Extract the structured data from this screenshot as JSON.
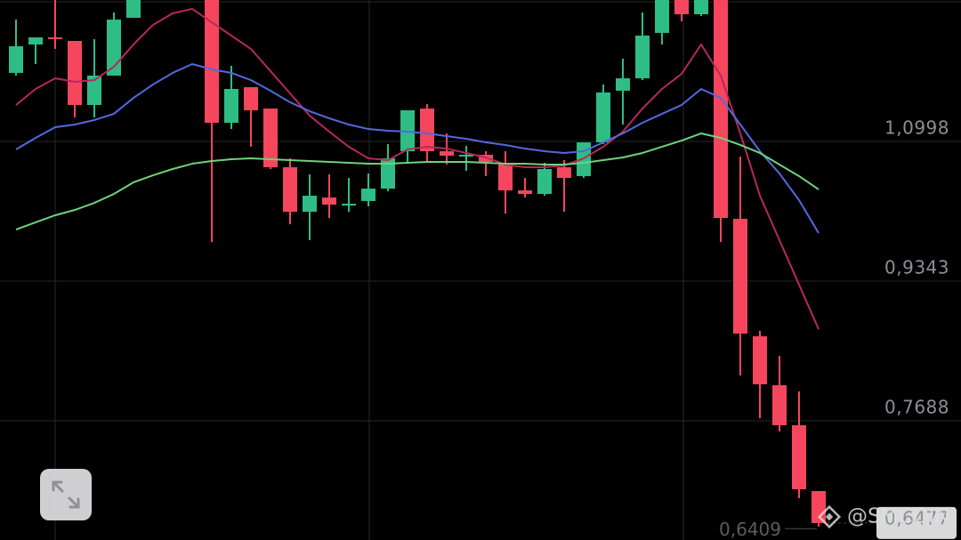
{
  "chart_data": {
    "type": "candlestick",
    "categories": [
      null,
      null,
      null,
      null,
      null,
      null,
      null,
      null,
      null,
      null,
      null,
      null,
      null,
      null,
      null,
      null,
      null,
      null,
      null,
      null,
      null,
      null,
      null,
      null,
      null,
      null,
      null,
      null,
      null,
      null,
      null,
      null,
      null,
      null,
      null,
      null,
      null,
      null,
      null,
      null,
      null,
      null
    ],
    "open": [
      1.181,
      1.2147,
      1.2231,
      1.2189,
      1.143,
      1.1778,
      1.2463,
      null,
      null,
      null,
      1.2674,
      1.1219,
      1.1641,
      1.1388,
      1.0692,
      1.0165,
      1.0334,
      1.0239,
      1.0292,
      1.0439,
      1.0882,
      1.1388,
      1.0882,
      1.0819,
      1.084,
      1.0745,
      1.0418,
      1.0376,
      1.0692,
      1.0587,
      1.0987,
      1.1599,
      1.1746,
      1.2284,
      1.2674,
      1.2505,
      1.2674,
      1.0081,
      0.8689,
      0.8109,
      0.7635,
      0.6855
    ],
    "high": [
      1.2442,
      1.2231,
      1.2674,
      1.2189,
      1.221,
      1.2526,
      1.2674,
      null,
      null,
      null,
      1.2674,
      1.1894,
      1.1641,
      1.1388,
      1.0798,
      1.0608,
      1.0608,
      1.0566,
      1.0618,
      1.0966,
      1.1367,
      1.1441,
      1.1093,
      1.0945,
      1.0882,
      1.0882,
      1.0566,
      1.0745,
      1.0777,
      1.0987,
      1.1673,
      1.1978,
      1.2526,
      1.2674,
      1.2674,
      1.2674,
      1.2674,
      1.0819,
      0.8752,
      0.8457,
      0.8036,
      0.6855
    ],
    "low": [
      1.1778,
      1.1915,
      1.2094,
      1.1282,
      1.1282,
      1.1778,
      1.2463,
      null,
      null,
      null,
      0.9807,
      1.1145,
      1.0935,
      1.0671,
      1.0017,
      0.9828,
      1.0091,
      1.0165,
      1.0228,
      1.0407,
      1.0755,
      1.0755,
      1.0724,
      1.065,
      1.0587,
      1.0144,
      1.0334,
      1.0355,
      1.0165,
      1.0566,
      1.0966,
      1.1198,
      1.1725,
      1.2147,
      1.2421,
      1.2484,
      0.9807,
      0.8225,
      0.7718,
      0.7561,
      0.677,
      0.6433
    ],
    "close": [
      1.2126,
      1.2231,
      1.221,
      1.143,
      1.1778,
      1.2442,
      1.2674,
      null,
      null,
      null,
      1.1219,
      1.162,
      1.1367,
      1.0692,
      1.0165,
      1.0355,
      1.0249,
      1.026,
      1.0439,
      1.0798,
      1.1367,
      1.0882,
      1.0829,
      1.084,
      1.0755,
      1.0418,
      1.0376,
      1.0671,
      1.0566,
      1.0987,
      1.1578,
      1.1746,
      1.2252,
      1.2674,
      1.2505,
      1.2674,
      1.0091,
      0.8721,
      0.812,
      0.7635,
      0.6876,
      0.6475
    ],
    "up_color": "#2ebd85",
    "down_color": "#f6465d",
    "series": [
      {
        "color": "#b8275f",
        "values": [
          1.143,
          1.162,
          1.1746,
          1.1704,
          1.1725,
          1.1883,
          1.2147,
          1.2379,
          1.2516,
          1.2569,
          1.241,
          1.2252,
          1.2094,
          1.1831,
          1.1567,
          1.1304,
          1.1114,
          1.0935,
          1.0798,
          1.0777,
          1.0903,
          1.0935,
          1.0913,
          1.0861,
          1.0808,
          1.0724,
          1.0692,
          1.0692,
          1.0713,
          1.0798,
          1.0935,
          1.1114,
          1.1388,
          1.162,
          1.1799,
          1.2147,
          1.1778,
          1.1093,
          1.0355,
          0.9828,
          0.9301,
          0.8773
        ]
      },
      {
        "color": "#5468e0",
        "values": [
          1.0903,
          1.104,
          1.1167,
          1.1198,
          1.1251,
          1.1325,
          1.1514,
          1.1673,
          1.181,
          1.1915,
          1.1852,
          1.181,
          1.1725,
          1.1599,
          1.1462,
          1.1356,
          1.1272,
          1.1198,
          1.1145,
          1.1124,
          1.1114,
          1.1093,
          1.1061,
          1.1029,
          1.0987,
          1.0956,
          1.0913,
          1.0882,
          1.0861,
          1.0882,
          1.0987,
          1.1093,
          1.1219,
          1.1325,
          1.143,
          1.162,
          1.1514,
          1.1198,
          1.0882,
          1.0618,
          1.0302,
          0.9912
        ]
      },
      {
        "color": "#6fd27a",
        "values": [
          0.9954,
          1.0039,
          1.0123,
          1.0186,
          1.027,
          1.0376,
          1.0513,
          1.0597,
          1.0671,
          1.0734,
          1.0766,
          1.0787,
          1.0798,
          1.0787,
          1.0777,
          1.0766,
          1.0755,
          1.0745,
          1.0734,
          1.0734,
          1.0745,
          1.0755,
          1.0755,
          1.0755,
          1.0745,
          1.0734,
          1.0734,
          1.0724,
          1.0724,
          1.0745,
          1.0777,
          1.0808,
          1.0861,
          1.0935,
          1.1008,
          1.1093,
          1.104,
          1.0956,
          1.0861,
          1.0724,
          1.0587,
          1.0429
        ]
      }
    ],
    "ylim": [
      0.6275,
      1.2674
    ],
    "yticks": [
      {
        "value": 1.0998,
        "label": "1,0998"
      },
      {
        "value": 0.9343,
        "label": "0,9343"
      },
      {
        "value": 0.7688,
        "label": "0,7688"
      }
    ],
    "grid": true,
    "low_marker": {
      "value": 0.6409,
      "label": "0,6409"
    },
    "last_price": {
      "value": 0.6477,
      "label": "0,6477"
    },
    "watermark": "@SMCOIN"
  }
}
